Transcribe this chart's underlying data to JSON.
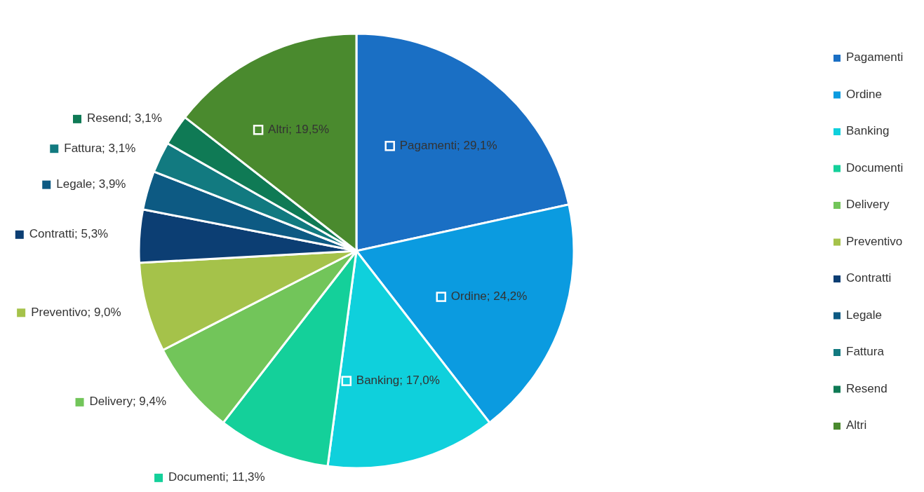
{
  "chart_data": {
    "type": "pie",
    "categories": [
      "Pagamenti",
      "Ordine",
      "Banking",
      "Documenti",
      "Delivery",
      "Preventivo",
      "Contratti",
      "Legale",
      "Fattura",
      "Resend",
      "Altri"
    ],
    "values": [
      29.1,
      24.2,
      17.0,
      11.3,
      9.4,
      9.0,
      5.3,
      3.9,
      3.1,
      3.1,
      19.5
    ],
    "value_labels": [
      "Pagamenti; 29,1%",
      "Ordine; 24,2%",
      "Banking; 17,0%",
      "Documenti; 11,3%",
      "Delivery; 9,4%",
      "Preventivo; 9,0%",
      "Contratti; 5,3%",
      "Legale; 3,9%",
      "Fattura; 3,1%",
      "Resend; 3,1%",
      "Altri; 19,5%"
    ],
    "colors": [
      "#1a6fc4",
      "#0b9be0",
      "#0fd0dc",
      "#14d09a",
      "#72c55a",
      "#a5c24a",
      "#0c3e73",
      "#0d5a83",
      "#127a80",
      "#0f7a55",
      "#4a8a2e"
    ],
    "legend": "right"
  }
}
